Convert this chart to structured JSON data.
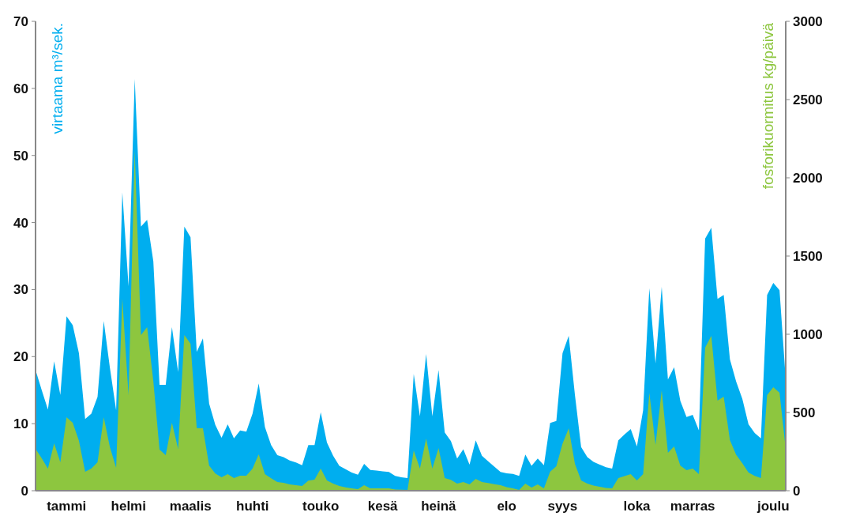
{
  "chart_data": {
    "type": "area",
    "ylabel": "virtaama m³/sek.",
    "y2label": "fosforikuormitus kg/päivä",
    "categories": [
      null,
      null,
      null,
      null,
      null,
      "tammi",
      null,
      null,
      null,
      null,
      null,
      null,
      null,
      null,
      null,
      "helmi",
      null,
      null,
      null,
      null,
      null,
      null,
      null,
      null,
      null,
      "maalis",
      null,
      null,
      null,
      null,
      null,
      null,
      null,
      null,
      null,
      "huhti",
      null,
      null,
      null,
      null,
      null,
      null,
      null,
      null,
      null,
      null,
      "touko",
      null,
      null,
      null,
      null,
      null,
      null,
      null,
      null,
      null,
      "kesä",
      null,
      null,
      null,
      null,
      null,
      null,
      null,
      null,
      "heinä",
      null,
      null,
      null,
      null,
      null,
      null,
      null,
      null,
      null,
      null,
      "elo",
      null,
      null,
      null,
      null,
      null,
      null,
      null,
      null,
      "syys",
      null,
      null,
      null,
      null,
      null,
      null,
      null,
      null,
      null,
      null,
      null,
      "loka",
      null,
      null,
      null,
      null,
      null,
      null,
      null,
      null,
      "marras",
      null,
      null,
      null,
      null,
      null,
      null,
      null,
      null,
      null,
      null,
      null,
      null,
      "joulu",
      null,
      null
    ],
    "series": [
      {
        "color": "#00aeef",
        "values": [
          18,
          15,
          12.1,
          19.3,
          14.3,
          26,
          24.7,
          20.5,
          10.7,
          11.5,
          14,
          25.3,
          18.3,
          12,
          44.5,
          30.5,
          61.4,
          39.4,
          40.4,
          34.2,
          15.8,
          15.8,
          24.4,
          17.7,
          39.4,
          37.8,
          20.7,
          22.7,
          13,
          9.8,
          7.9,
          9.9,
          7.8,
          9,
          8.8,
          11.5,
          16,
          9.5,
          6.8,
          5.3,
          5,
          4.5,
          4.2,
          3.8,
          6.8,
          6.8,
          11.7,
          7.2,
          5.2,
          3.7,
          3.2,
          2.7,
          2.4,
          4,
          3.1,
          3,
          2.9,
          2.8,
          2.2,
          2,
          1.9,
          17.4,
          11.1,
          20.4,
          11.1,
          18,
          8.7,
          7.4,
          4.8,
          6.2,
          3.9,
          7.5,
          5.2,
          4.4,
          3.6,
          2.8,
          2.6,
          2.5,
          2.2,
          5.4,
          3.7,
          4.8,
          3.8,
          10.1,
          10.4,
          20.5,
          23.1,
          14.3,
          6.5,
          5,
          4.3,
          3.9,
          3.5,
          3.3,
          7.5,
          8.4,
          9.2,
          6.6,
          12,
          30.2,
          19,
          30.4,
          16.6,
          18.4,
          13.4,
          11,
          11.3,
          9,
          37.6,
          39.2,
          28.6,
          29.2,
          19.6,
          16.3,
          13.7,
          9.9,
          8.6,
          7.8,
          29.2,
          31,
          29.9,
          16.6
        ]
      },
      {
        "color": "#8dc63f",
        "axis": "y2",
        "values": [
          268,
          207,
          141,
          303,
          182,
          470,
          434,
          320,
          121,
          141,
          182,
          470,
          278,
          146,
          1227,
          611,
          2177,
          995,
          1045,
          700,
          263,
          227,
          434,
          268,
          995,
          939,
          400,
          399,
          160,
          110,
          86,
          106,
          81,
          96,
          96,
          141,
          232,
          106,
          80,
          56,
          50,
          40,
          35,
          30,
          65,
          71,
          141,
          66,
          46,
          30,
          21,
          15,
          10,
          35,
          15,
          15,
          15,
          15,
          8,
          6,
          5,
          258,
          141,
          333,
          141,
          273,
          81,
          69,
          45,
          56,
          40,
          76,
          56,
          49,
          42,
          35,
          23,
          15,
          5,
          45,
          20,
          40,
          15,
          121,
          157,
          300,
          399,
          172,
          66,
          45,
          33,
          25,
          18,
          15,
          81,
          94,
          106,
          66,
          106,
          626,
          293,
          641,
          242,
          283,
          160,
          131,
          141,
          106,
          914,
          990,
          576,
          601,
          323,
          230,
          176,
          116,
          95,
          81,
          611,
          662,
          626,
          268
        ]
      }
    ],
    "ylim": [
      0,
      70
    ],
    "yticks": [
      0,
      10,
      20,
      30,
      40,
      50,
      60,
      70
    ],
    "y2lim": [
      0,
      3000
    ],
    "y2ticks": [
      0,
      500,
      1000,
      1500,
      2000,
      2500,
      3000
    ]
  }
}
